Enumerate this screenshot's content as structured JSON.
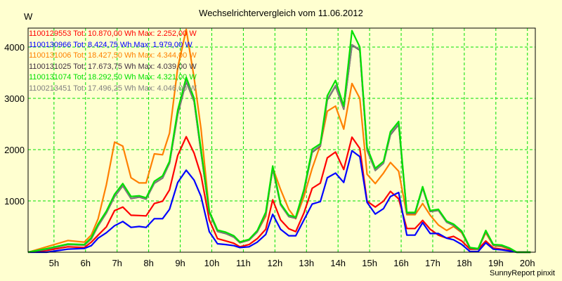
{
  "chart_data": {
    "type": "line",
    "title": "Wechselrichtervergleich vom 11.06.2012",
    "ylabel": "W",
    "xlabel": "",
    "ylim": [
      0,
      4370
    ],
    "xlim": [
      4.18,
      20.25
    ],
    "yticks": [
      1000,
      2000,
      3000,
      4000
    ],
    "ytick_labels": [
      "1000",
      "2000",
      "3000",
      "4000"
    ],
    "xticks": [
      5,
      6,
      7,
      8,
      9,
      10,
      11,
      12,
      13,
      14,
      15,
      16,
      17,
      18,
      19,
      20
    ],
    "xtick_labels": [
      "5h",
      "6h",
      "7h",
      "8h",
      "9h",
      "10h",
      "11h",
      "12h",
      "13h",
      "14h",
      "15h",
      "16h",
      "17h",
      "18h",
      "19h",
      "20h"
    ],
    "grid": true,
    "legend_position": "top-left",
    "x": [
      4.18,
      4.77,
      5.44,
      5.96,
      6.18,
      6.4,
      6.66,
      6.92,
      7.18,
      7.44,
      7.7,
      7.92,
      8.18,
      8.44,
      8.66,
      8.92,
      9.19,
      9.44,
      9.66,
      9.92,
      10.18,
      10.44,
      10.7,
      10.89,
      11.18,
      11.44,
      11.71,
      11.93,
      12.18,
      12.44,
      12.66,
      12.92,
      13.18,
      13.44,
      13.66,
      13.92,
      14.18,
      14.44,
      14.69,
      14.92,
      15.18,
      15.44,
      15.66,
      15.92,
      16.18,
      16.44,
      16.68,
      16.92,
      17.18,
      17.44,
      17.66,
      17.92,
      18.18,
      18.44,
      18.68,
      18.92,
      19.18,
      19.44,
      19.66,
      20.1
    ],
    "series": [
      {
        "name": "1100129553",
        "legend": "1100129553 Tot: 10.870,00 Wh Max: 2.252,00 W",
        "color": "#ff0000",
        "values": [
          0,
          35,
          105,
          90,
          195,
          333,
          493,
          813,
          881,
          721,
          715,
          708,
          950,
          995,
          1215,
          1886,
          2252,
          1931,
          1498,
          630,
          265,
          220,
          174,
          105,
          150,
          265,
          447,
          1020,
          630,
          457,
          402,
          767,
          1247,
          1347,
          1840,
          1954,
          1612,
          2242,
          2023,
          995,
          881,
          995,
          1187,
          1041,
          461,
          461,
          621,
          447,
          333,
          274,
          310,
          219,
          59,
          59,
          219,
          82,
          59,
          37,
          0,
          0
        ]
      },
      {
        "name": "1100130966",
        "legend": "1100130966 Tot: 8.424,75 Wh Max: 1.979,00 W",
        "color": "#0000ff",
        "values": [
          0,
          0,
          60,
          73,
          128,
          274,
          379,
          516,
          598,
          484,
          502,
          484,
          653,
          653,
          836,
          1361,
          1598,
          1406,
          1087,
          402,
          164,
          150,
          128,
          91,
          105,
          196,
          347,
          740,
          447,
          320,
          320,
          630,
          940,
          986,
          1452,
          1543,
          1361,
          1979,
          1863,
          972,
          744,
          849,
          1087,
          1164,
          333,
          333,
          575,
          365,
          365,
          274,
          242,
          151,
          14,
          14,
          183,
          59,
          46,
          23,
          0,
          0
        ]
      },
      {
        "name": "1100131006",
        "legend": "1100131006 Tot: 18.427,50 Wh Max: 4.344,00 W",
        "color": "#ff8000",
        "values": [
          0,
          105,
          228,
          196,
          333,
          653,
          1315,
          2146,
          2068,
          1452,
          1351,
          1351,
          1918,
          1900,
          2320,
          3600,
          4344,
          3400,
          2400,
          800,
          420,
          380,
          300,
          200,
          250,
          400,
          700,
          1650,
          1224,
          836,
          653,
          1087,
          1635,
          2091,
          2750,
          2850,
          2400,
          3290,
          3000,
          1520,
          1338,
          1543,
          1749,
          1580,
          730,
          730,
          950,
          721,
          530,
          425,
          502,
          379,
          82,
          70,
          380,
          130,
          110,
          60,
          0,
          0
        ]
      },
      {
        "name": "1100131025",
        "legend": "1100131025 Tot: 17.673,75 Wh Max: 4.039,00 W",
        "color": "#403040",
        "values": [
          0,
          58,
          148,
          138,
          258,
          515,
          765,
          1085,
          1295,
          1045,
          1075,
          1035,
          1345,
          1445,
          1735,
          2690,
          3330,
          2940,
          1940,
          775,
          405,
          365,
          295,
          185,
          235,
          395,
          745,
          1630,
          925,
          695,
          665,
          1195,
          1950,
          2070,
          2970,
          3240,
          2790,
          4039,
          3940,
          1990,
          1595,
          1735,
          2290,
          2490,
          755,
          755,
          1255,
          795,
          815,
          585,
          525,
          395,
          80,
          60,
          405,
          135,
          125,
          70,
          0,
          0
        ]
      },
      {
        "name": "1100131074",
        "legend": "1100131074 Tot: 18.292,50 Wh Max: 4.321,00 W",
        "color": "#00e000",
        "values": [
          0,
          70,
          160,
          150,
          280,
          550,
          800,
          1130,
          1338,
          1087,
          1100,
          1060,
          1383,
          1488,
          1771,
          2770,
          3410,
          3000,
          2000,
          800,
          430,
          390,
          320,
          200,
          250,
          420,
          780,
          1680,
          950,
          721,
          685,
          1224,
          2009,
          2114,
          3050,
          3350,
          2850,
          4321,
          4000,
          2045,
          1635,
          1771,
          2350,
          2550,
          776,
          776,
          1278,
          813,
          836,
          607,
          548,
          411,
          90,
          70,
          425,
          151,
          140,
          80,
          0,
          0
        ]
      },
      {
        "name": "1100213451",
        "legend": "1100213451 Tot: 17.496,25 Wh Max: 4.046,00 W",
        "color": "#808080",
        "values": [
          0,
          60,
          150,
          140,
          260,
          520,
          770,
          1090,
          1300,
          1050,
          1080,
          1040,
          1350,
          1450,
          1740,
          2700,
          3350,
          2950,
          1950,
          780,
          410,
          370,
          300,
          190,
          240,
          400,
          750,
          1640,
          930,
          700,
          670,
          1200,
          1960,
          2080,
          2980,
          3250,
          2800,
          4046,
          3950,
          2000,
          1600,
          1740,
          2300,
          2500,
          760,
          760,
          1260,
          800,
          820,
          590,
          530,
          400,
          85,
          65,
          410,
          140,
          130,
          75,
          0,
          0
        ]
      }
    ]
  },
  "footer": "SunnyReport pinxit",
  "colors": {
    "background": "#ffffd0",
    "grid": "#00e000"
  }
}
